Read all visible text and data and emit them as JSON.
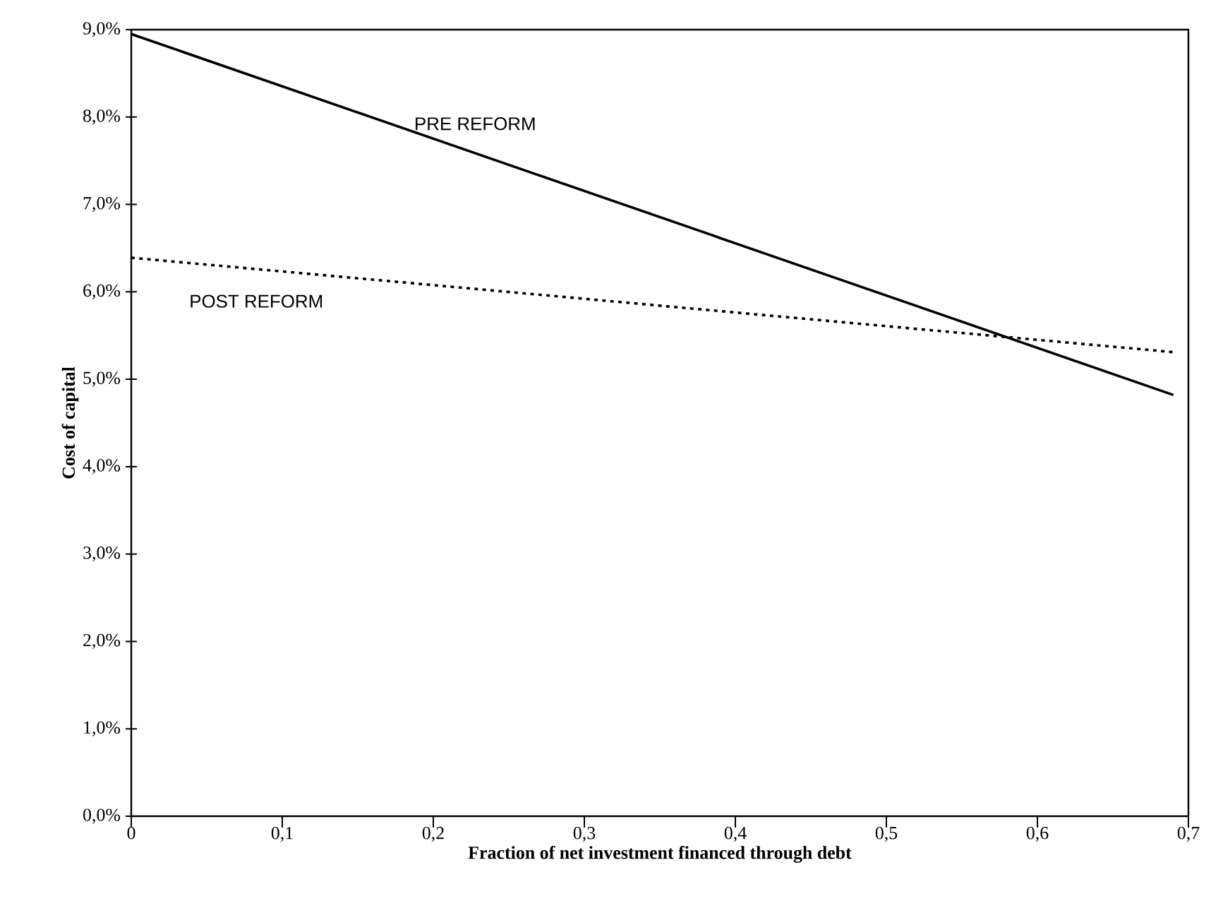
{
  "chart_data": {
    "type": "line",
    "xlabel": "Fraction of net investment financed through debt",
    "ylabel": "Cost of capital",
    "xlim": [
      0,
      0.7
    ],
    "ylim": [
      0,
      9
    ],
    "xticks": [
      0,
      {
        "value": 0.1,
        "label": "0,1"
      },
      {
        "value": 0.2,
        "label": "0,2"
      },
      {
        "value": 0.3,
        "label": "0,3"
      },
      {
        "value": 0.4,
        "label": "0,4"
      },
      {
        "value": 0.5,
        "label": "0,5"
      },
      {
        "value": 0.6,
        "label": "0,6"
      },
      {
        "value": 0.7,
        "label": "0,7"
      }
    ],
    "yticks": [
      {
        "value": 0,
        "label": "0,0%"
      },
      {
        "value": 1,
        "label": "1,0%"
      },
      {
        "value": 2,
        "label": "2,0%"
      },
      {
        "value": 3,
        "label": "3,0%"
      },
      {
        "value": 4,
        "label": "4,0%"
      },
      {
        "value": 5,
        "label": "5,0%"
      },
      {
        "value": 6,
        "label": "6,0%"
      },
      {
        "value": 7,
        "label": "7,0%"
      },
      {
        "value": 8,
        "label": "8,0%"
      },
      {
        "value": 9,
        "label": "9,0%"
      }
    ],
    "x": [
      0,
      0.69
    ],
    "series": [
      {
        "name": "PRE REFORM",
        "color": "#000000",
        "values": [
          8.95,
          4.82
        ],
        "line_style": "solid"
      },
      {
        "name": "POST REFORM",
        "color": "#000000",
        "values": [
          6.39,
          5.31
        ],
        "line_style": "dotted"
      }
    ],
    "grid": false,
    "legend": false,
    "marker": "none"
  }
}
